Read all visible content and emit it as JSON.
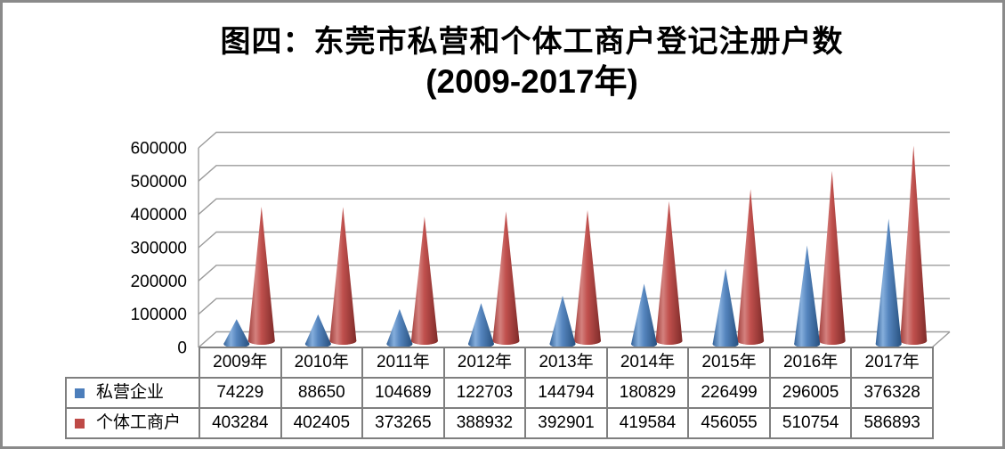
{
  "frame": {
    "border_color": "#8A8A8A",
    "background": "#FFFFFF"
  },
  "title": {
    "line1": "图四：东莞市私营和个体工商户登记注册户数",
    "line2": "(2009-2017年)"
  },
  "chart_data": {
    "type": "bar",
    "subtype": "3d-cone",
    "title": "图四：东莞市私营和个体工商户登记注册户数 (2009-2017年)",
    "categories": [
      "2009年",
      "2010年",
      "2011年",
      "2012年",
      "2013年",
      "2014年",
      "2015年",
      "2016年",
      "2017年"
    ],
    "series": [
      {
        "name": "私营企业",
        "color": "#4C7EBB",
        "gradient": [
          "#35639A",
          "#85AEDC",
          "#5585BE",
          "#27507E"
        ],
        "values": [
          74229,
          88650,
          104689,
          122703,
          144794,
          180829,
          226499,
          296005,
          376328
        ]
      },
      {
        "name": "个体工商户",
        "color": "#BE4A47",
        "gradient": [
          "#9F3E3B",
          "#D4817E",
          "#C0504D",
          "#7E2B29"
        ],
        "values": [
          403284,
          402405,
          373265,
          388932,
          392901,
          419584,
          456055,
          510754,
          586893
        ]
      }
    ],
    "ylim": [
      0,
      600000
    ],
    "ytick_step": 100000,
    "yticks": [
      "0",
      "100000",
      "200000",
      "300000",
      "400000",
      "500000",
      "600000"
    ],
    "grid": true,
    "legend_position": "data-table-left",
    "show_data_table": true,
    "gridline_color": "#9C9C9C",
    "table_border_color": "#7F7F7F"
  }
}
